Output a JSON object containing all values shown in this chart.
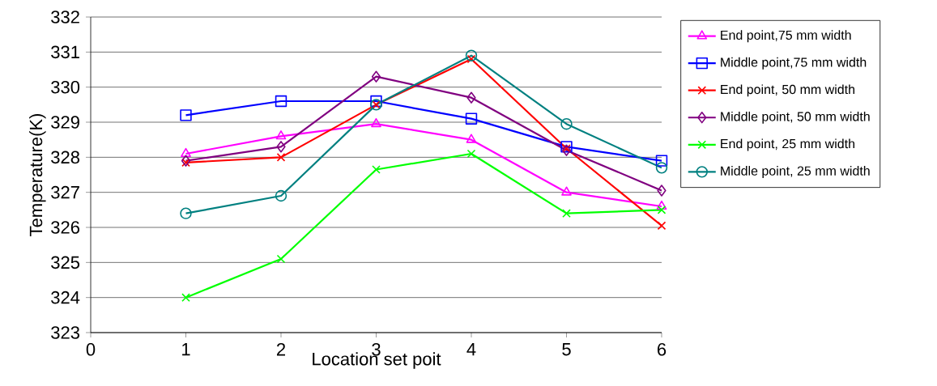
{
  "chart_data": {
    "type": "line",
    "xlabel": "Location set poit",
    "ylabel": "Temperature(K)",
    "x": [
      1,
      2,
      3,
      4,
      5,
      6
    ],
    "xlim": [
      0,
      6
    ],
    "xticks": [
      0,
      1,
      2,
      3,
      4,
      5,
      6
    ],
    "ylim": [
      323,
      332
    ],
    "yticks": [
      323,
      324,
      325,
      326,
      327,
      328,
      329,
      330,
      331,
      332
    ],
    "grid": "y",
    "legend": "right",
    "line_style": "solid",
    "series": [
      {
        "name": "End point,75 mm width",
        "color": "#ff00ff",
        "marker": "triangle",
        "values": [
          328.1,
          328.6,
          328.95,
          328.5,
          327.0,
          326.6
        ]
      },
      {
        "name": "Middle point,75 mm width",
        "color": "#0000ff",
        "marker": "square",
        "values": [
          329.2,
          329.6,
          329.6,
          329.1,
          328.3,
          327.9
        ]
      },
      {
        "name": "End point, 50 mm width",
        "color": "#ff0000",
        "marker": "cross",
        "values": [
          327.85,
          328.0,
          329.5,
          330.8,
          328.25,
          326.05
        ]
      },
      {
        "name": "Middle point, 50 mm width",
        "color": "#800080",
        "marker": "diamond",
        "values": [
          327.9,
          328.3,
          330.3,
          329.7,
          328.2,
          327.05
        ]
      },
      {
        "name": "End point, 25 mm width",
        "color": "#00ff00",
        "marker": "cross",
        "values": [
          324.0,
          325.1,
          327.65,
          328.1,
          326.4,
          326.5
        ]
      },
      {
        "name": "Middle point, 25 mm width",
        "color": "#008080",
        "marker": "circle",
        "values": [
          326.4,
          326.9,
          329.5,
          330.9,
          328.95,
          327.7
        ]
      }
    ]
  }
}
